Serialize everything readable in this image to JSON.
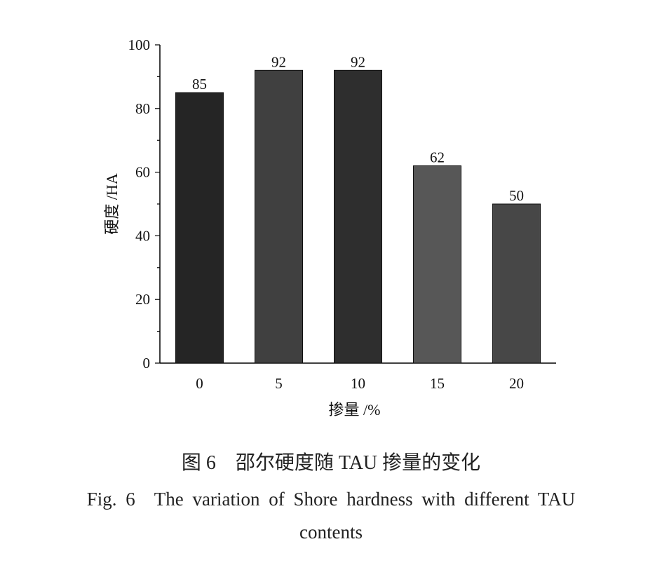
{
  "chart_data": {
    "type": "bar",
    "categories": [
      "0",
      "5",
      "10",
      "15",
      "20"
    ],
    "values": [
      85,
      92,
      92,
      62,
      50
    ],
    "bar_colors": [
      "#252525",
      "#404040",
      "#2e2e2e",
      "#575757",
      "#474747"
    ],
    "xlabel": "掺量 /%",
    "ylabel": "硬度 /HA",
    "ylim": [
      0,
      100
    ],
    "yticks": [
      0,
      20,
      40,
      60,
      80,
      100
    ],
    "grid": false
  },
  "caption": {
    "cn": "图 6　邵尔硬度随 TAU 掺量的变化",
    "en_line1": "Fig. 6　The variation of Shore hardness with different TAU",
    "en_line2": "contents"
  }
}
